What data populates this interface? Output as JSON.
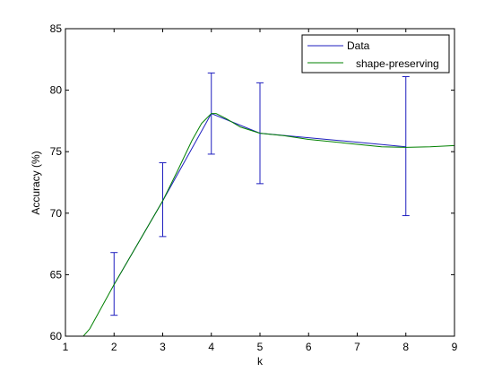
{
  "chart_data": {
    "type": "line",
    "title": "",
    "xlabel": "k",
    "ylabel": "Accuracy (%)",
    "xlim": [
      1,
      9
    ],
    "ylim": [
      60,
      85
    ],
    "xticks": [
      1,
      2,
      3,
      4,
      5,
      6,
      7,
      8,
      9
    ],
    "yticks": [
      60,
      65,
      70,
      75,
      80,
      85
    ],
    "xtick_labels": [
      "1",
      "2",
      "3",
      "4",
      "5",
      "6",
      "7",
      "8",
      "9"
    ],
    "ytick_labels": [
      "60",
      "65",
      "70",
      "75",
      "80",
      "85"
    ],
    "grid": false,
    "legend_position": "top-right",
    "series": [
      {
        "name": "Data",
        "color": "#1f1fbf",
        "x": [
          2,
          3,
          4,
          5,
          8
        ],
        "y": [
          64.2,
          71.0,
          78.1,
          76.5,
          75.4
        ],
        "error_lower": [
          61.7,
          68.1,
          74.8,
          72.4,
          69.8
        ],
        "error_upper": [
          66.8,
          74.1,
          81.4,
          80.6,
          81.1
        ]
      },
      {
        "name": "shape-preserving",
        "color": "#008000",
        "x": [
          1.3,
          1.5,
          2,
          2.5,
          3,
          3.3,
          3.6,
          3.8,
          4,
          4.1,
          4.3,
          4.6,
          5,
          5.5,
          6,
          7,
          7.5,
          8,
          8.5,
          9
        ],
        "y": [
          59.7,
          60.6,
          64.2,
          67.6,
          71.0,
          73.4,
          75.9,
          77.3,
          78.1,
          78.1,
          77.7,
          77.0,
          76.5,
          76.3,
          76.0,
          75.6,
          75.4,
          75.35,
          75.4,
          75.5
        ]
      }
    ]
  }
}
